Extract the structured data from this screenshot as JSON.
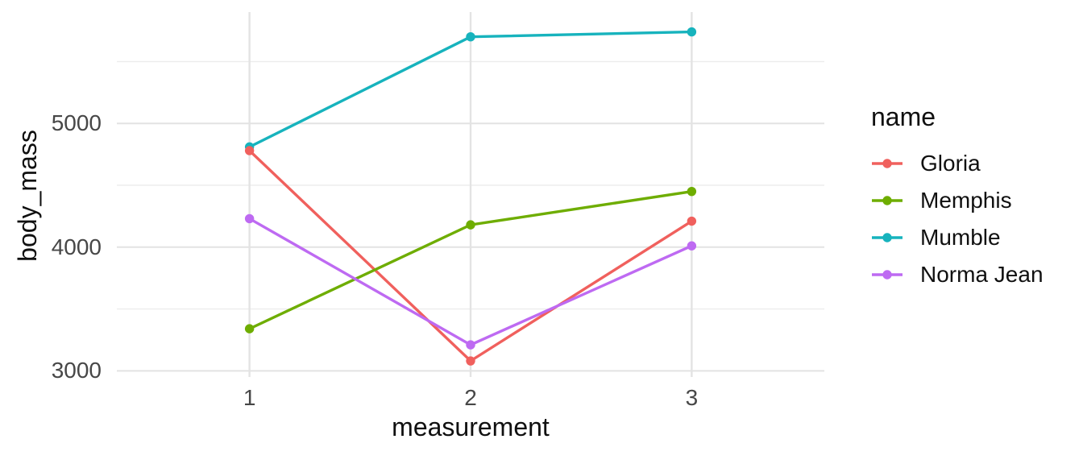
{
  "chart_data": {
    "type": "line",
    "title": "",
    "xlabel": "measurement",
    "ylabel": "body_mass",
    "x": [
      1,
      2,
      3
    ],
    "xticklabels": [
      "1",
      "2",
      "3"
    ],
    "yticks": [
      3000,
      4000,
      5000
    ],
    "ytick_minor": [
      3500,
      4500,
      5500
    ],
    "ylim": [
      2950,
      5900
    ],
    "grid": true,
    "legend": {
      "title": "name",
      "position": "right"
    },
    "series": [
      {
        "name": "Gloria",
        "color": "#F0605D",
        "values": [
          4780,
          3080,
          4210
        ]
      },
      {
        "name": "Memphis",
        "color": "#6EAD00",
        "values": [
          3340,
          4180,
          4450
        ]
      },
      {
        "name": "Mumble",
        "color": "#17B3BD",
        "values": [
          4810,
          5700,
          5740
        ]
      },
      {
        "name": "Norma Jean",
        "color": "#BE6AF2",
        "values": [
          4230,
          3210,
          4010
        ]
      }
    ]
  },
  "colors": {
    "background": "#FFFFFF",
    "grid_major": "#E3E3E3",
    "grid_minor": "#ECECEC",
    "tick_text": "#474747",
    "title_text": "#101010"
  }
}
